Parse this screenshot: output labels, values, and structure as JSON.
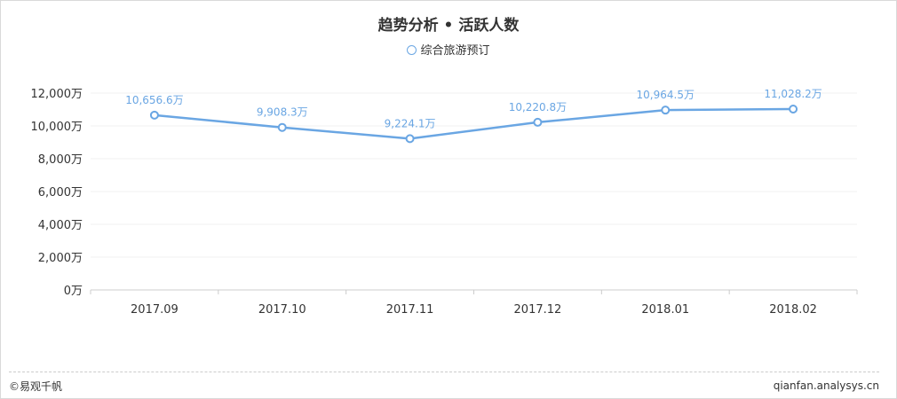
{
  "title": "趋势分析 • 活跃人数",
  "legend": {
    "label": "综合旅游预订"
  },
  "colors": {
    "series": "#6aa6e3",
    "axis": "#cccccc",
    "grid": "#f2f2f2",
    "text": "#333333"
  },
  "chart_data": {
    "type": "line",
    "title": "趋势分析 • 活跃人数",
    "categories": [
      "2017.09",
      "2017.10",
      "2017.11",
      "2017.12",
      "2018.01",
      "2018.02"
    ],
    "series": [
      {
        "name": "综合旅游预订",
        "values": [
          10656.6,
          9908.3,
          9224.1,
          10220.8,
          10964.5,
          11028.2
        ],
        "labels": [
          "10,656.6万",
          "9,908.3万",
          "9,224.1万",
          "10,220.8万",
          "10,964.5万",
          "11,028.2万"
        ]
      }
    ],
    "ylim": [
      0,
      12000
    ],
    "yticks": [
      0,
      2000,
      4000,
      6000,
      8000,
      10000,
      12000
    ],
    "ytick_labels": [
      "0万",
      "2,000万",
      "4,000万",
      "6,000万",
      "8,000万",
      "10,000万",
      "12,000万"
    ],
    "grid": true,
    "legend_position": "top-center"
  },
  "footer": {
    "left": "©易观千帆",
    "right": "qianfan.analysys.cn"
  }
}
